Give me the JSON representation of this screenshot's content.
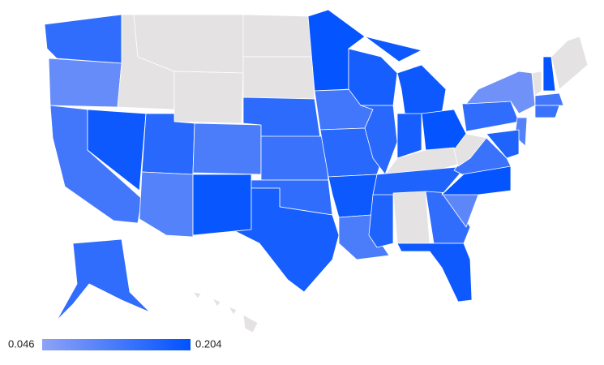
{
  "chart_data": {
    "type": "choropleth",
    "values": [
      0.15,
      0.09,
      0.13,
      0.19,
      null,
      null,
      null,
      0.16,
      0.11,
      0.12,
      0.195,
      null,
      null,
      0.155,
      0.14,
      0.15,
      0.18,
      0.2,
      0.13,
      0.16,
      0.19,
      0.12,
      0.18,
      0.16,
      0.17,
      0.19,
      0.18,
      0.2,
      null,
      0.17,
      null,
      0.15,
      0.19,
      0.1,
      0.2,
      0.14,
      null,
      0.15,
      0.08,
      0.11,
      0.17,
      null,
      0.2,
      null,
      0.13,
      0.14,
      0.15,
      null
    ],
    "zlim": [
      0.046,
      0.204
    ],
    "colors": [
      "#8ea2f6",
      "#0052ff"
    ],
    "missing_color": "#e4e2e2"
  }
}
